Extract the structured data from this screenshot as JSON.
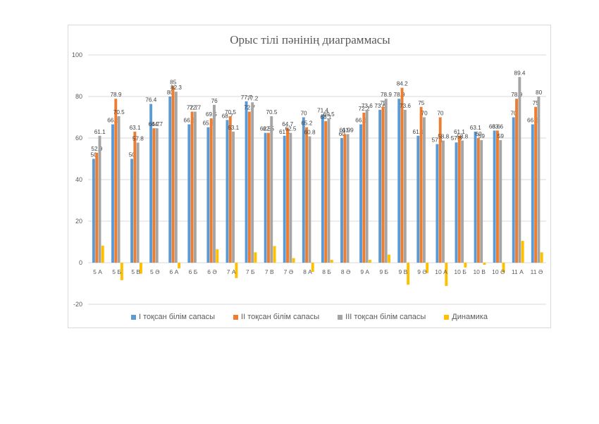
{
  "chart_data": {
    "type": "bar",
    "title": "Орыс тілі пәнінің диаграммасы",
    "ylim": [
      -20,
      100
    ],
    "yticks": [
      -20,
      0,
      20,
      40,
      60,
      80,
      100
    ],
    "grid": true,
    "legend_position": "bottom",
    "categories": [
      "5 А",
      "5 Б",
      "5 В",
      "5 Ә",
      "6 А",
      "6 Б",
      "6 Ә",
      "7 А",
      "7 Б",
      "7 В",
      "7 Ә",
      "8 А",
      "8 Б",
      "8 Ә",
      "9 А",
      "9 Б",
      "9 В",
      "9 Ә",
      "10 А",
      "10 Б",
      "10 В",
      "10 Ә",
      "11 А",
      "11 Ә"
    ],
    "series": [
      {
        "name": "І тоқсан білім сапасы",
        "color": "#5b9bd5",
        "labeled": true,
        "values": [
          50,
          66.6,
          50,
          76.4,
          80,
          66.6,
          65.2,
          68.7,
          77.7,
          62.5,
          61.1,
          70,
          71.4,
          60,
          66.6,
          73.6,
          78.9,
          61.1,
          57.1,
          57.9,
          63.1,
          63.6,
          70,
          66.6
        ]
      },
      {
        "name": "ІІ тоқсан білім сапасы",
        "color": "#ed7d31",
        "labeled": true,
        "values": [
          52.9,
          78.9,
          63.1,
          64.7,
          85,
          72.7,
          69.5,
          70.5,
          72.7,
          62.5,
          64.7,
          65.2,
          68.1,
          61.9,
          72.2,
          75,
          84.2,
          75,
          70,
          61.1,
          60,
          63.6,
          78.9,
          75
        ]
      },
      {
        "name": "ІІІ тоқсан білім сапасы",
        "color": "#a5a5a5",
        "labeled": true,
        "values": [
          61.1,
          70.5,
          57.8,
          64.7,
          82.3,
          72.7,
          76,
          63.1,
          77.2,
          70.5,
          62.5,
          60.8,
          69.5,
          61.9,
          73.6,
          78.9,
          73.6,
          70,
          58.8,
          58.8,
          59,
          59,
          89.4,
          80
        ]
      },
      {
        "name": "Динамика",
        "color": "#ffc000",
        "labeled": false,
        "values": [
          8.2,
          -8.4,
          -5.3,
          0,
          -2.7,
          0,
          6.5,
          -7.4,
          5,
          8,
          2.2,
          -4.4,
          1.4,
          0,
          1.4,
          3.9,
          -10.6,
          -5,
          -11.2,
          -2.3,
          -1,
          -4.6,
          10.5,
          5
        ]
      }
    ]
  }
}
